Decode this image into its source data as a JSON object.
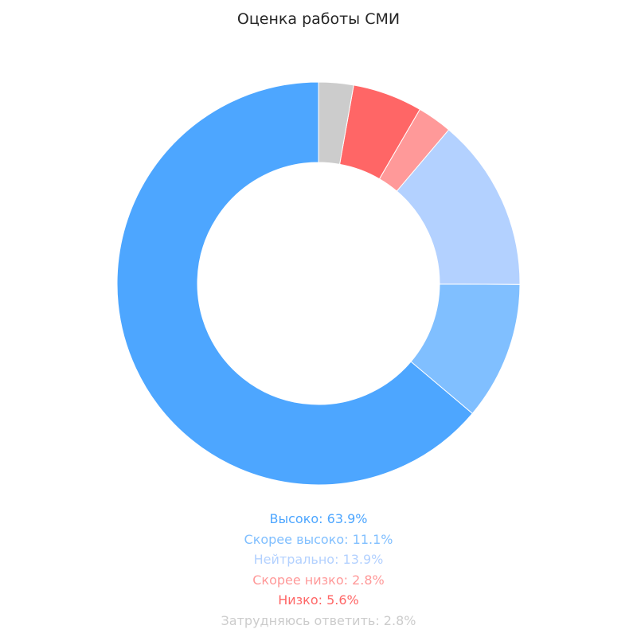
{
  "chart_data": {
    "type": "pie",
    "title": "Оценка работы СМИ",
    "donut": true,
    "slices": [
      {
        "label": "Высоко",
        "value": 63.9,
        "color": "#4da6ff"
      },
      {
        "label": "Скорее высоко",
        "value": 11.1,
        "color": "#80bfff"
      },
      {
        "label": "Нейтрально",
        "value": 13.9,
        "color": "#b3d1ff"
      },
      {
        "label": "Скорее низко",
        "value": 2.8,
        "color": "#ff9999"
      },
      {
        "label": "Низко",
        "value": 5.6,
        "color": "#ff6666"
      },
      {
        "label": "Затрудняюсь ответить",
        "value": 2.8,
        "color": "#cccccc"
      }
    ],
    "legend_text": [
      "Высоко: 63.9%",
      "Скорее высоко: 11.1%",
      "Нейтрально: 13.9%",
      "Скорее низко: 2.8%",
      "Низко: 5.6%",
      "Затрудняюсь ответить: 2.8%"
    ],
    "legend_placement": "bottom-center"
  }
}
